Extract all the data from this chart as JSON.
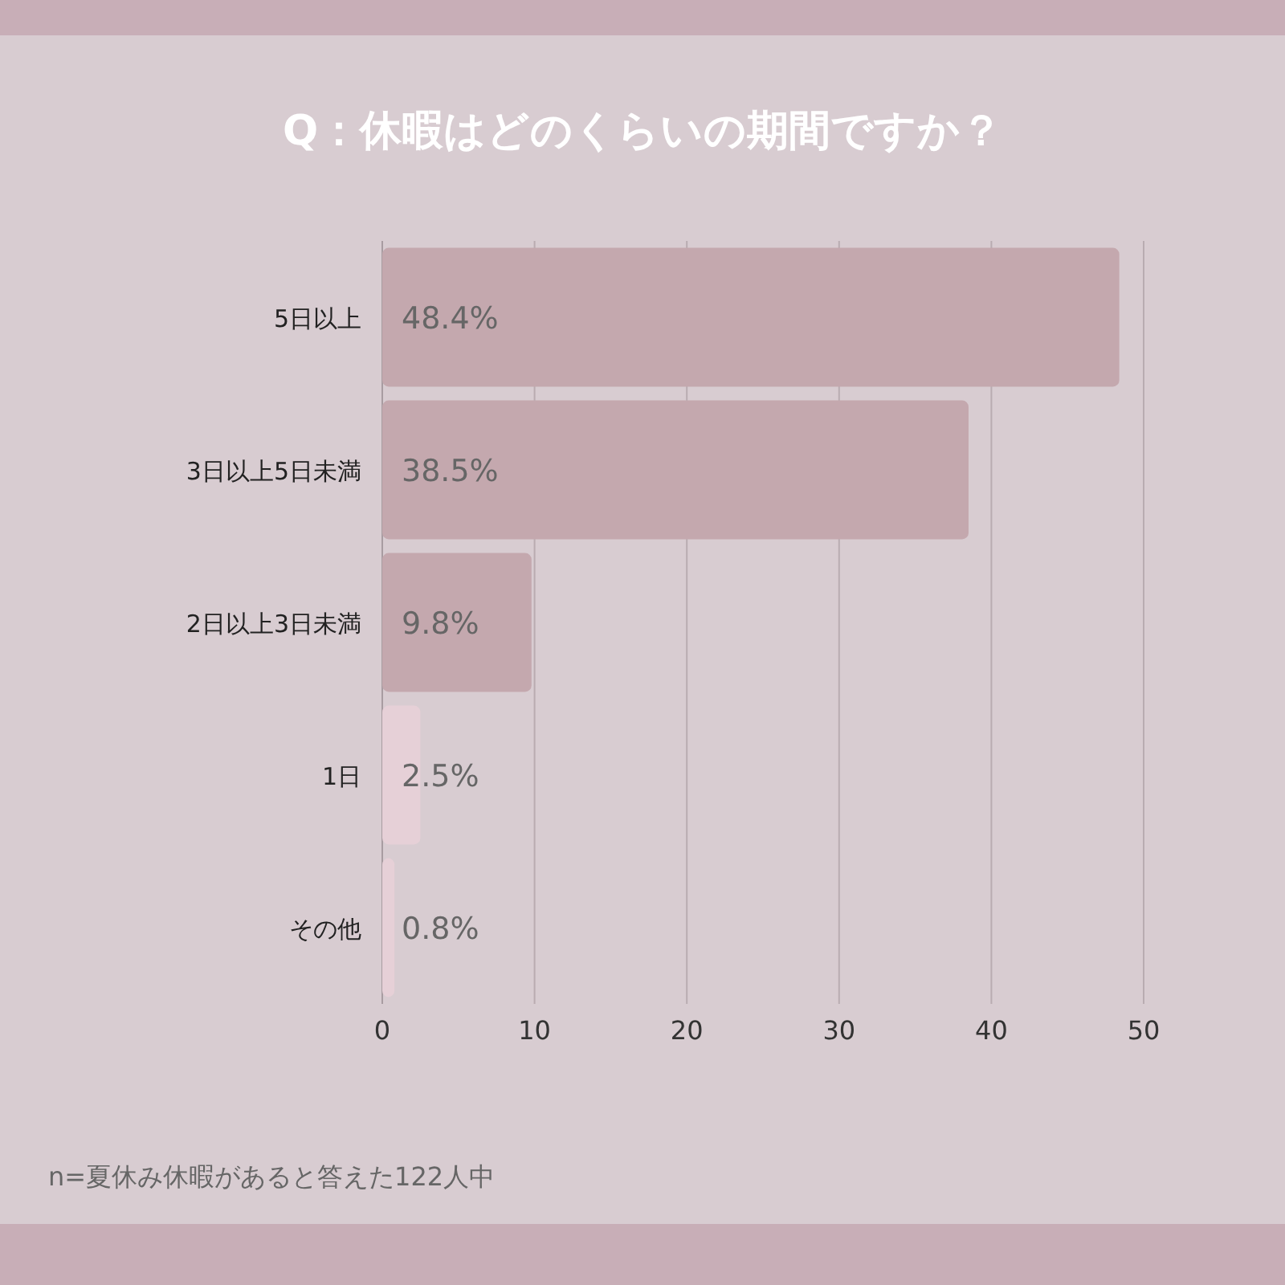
{
  "chart_data": {
    "type": "bar",
    "orientation": "horizontal",
    "title": "Q：休暇はどのくらいの期間ですか？",
    "categories": [
      "5日以上",
      "3日以上5日未満",
      "2日以上3日未満",
      "1日",
      "その他"
    ],
    "values": [
      48.4,
      38.5,
      9.8,
      2.5,
      0.8
    ],
    "value_labels": [
      "48.4%",
      "38.5%",
      "9.8%",
      "2.5%",
      "0.8%"
    ],
    "colors": [
      "#c4a8ae",
      "#c4a8ae",
      "#c4a8ae",
      "#e6d0d7",
      "#e6d0d7"
    ],
    "xlim": [
      0,
      50
    ],
    "xticks": [
      0,
      10,
      20,
      30,
      40,
      50
    ],
    "grid": "x",
    "annotations": [
      "n=夏休み休暇があると答えた122人中"
    ]
  }
}
